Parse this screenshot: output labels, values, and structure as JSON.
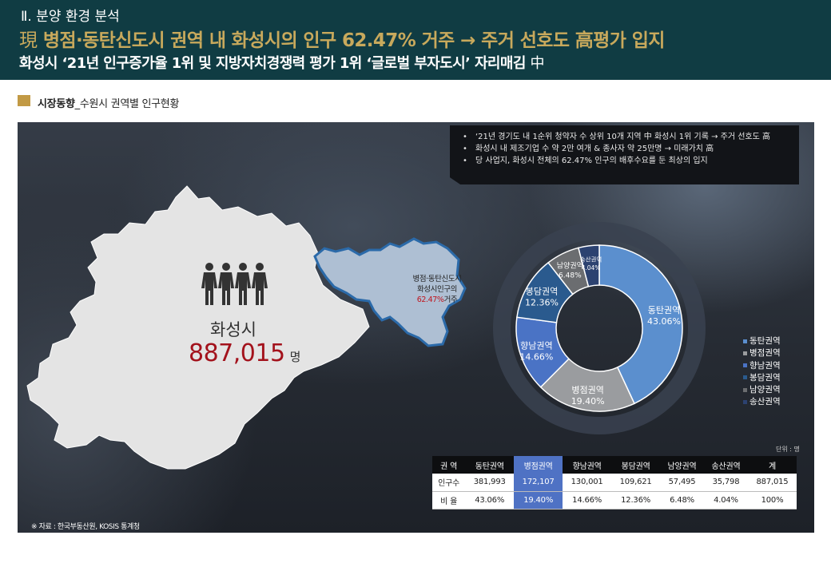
{
  "header": {
    "section": "Ⅱ. 분양 환경 분석",
    "title_prefix": "現",
    "title": "병점·동탄신도시 권역 내 화성시의 인구 62.47% 거주 → 주거 선호도 高평가 입지",
    "subtitle": "화성시 ‘21년 인구증가율 1위 및 지방자치경쟁력 평가 1위 ‘글로벌 부자도시’ 자리매김",
    "subtitle_tail": "中"
  },
  "section": {
    "label": "시장동향",
    "sublabel": "_수원시 권역별 인구현황"
  },
  "notes": [
    "‘21년 경기도 내 1순위 청약자 수 상위 10개 지역 中 화성시 1위 기록 → 주거 선호도 高",
    "화성시 내 제조기업 수 약 2만 여개 & 종사자 약 25만명 → 미래가치 高",
    "당 사업지, 화성시 전체의 62.47% 인구의 배후수요를 둔 최상의 입지"
  ],
  "map": {
    "city_name": "화성시",
    "population": "887,015",
    "population_unit": "명",
    "people_icon": "people-group-icon",
    "callout_line1": "병점·동탄신도시",
    "callout_line2": "화성시인구의",
    "callout_pct": "62.47%",
    "callout_suffix": "거주"
  },
  "chart_data": {
    "type": "pie",
    "donut": true,
    "categories": [
      "동탄권역",
      "병점권역",
      "향남권역",
      "봉담권역",
      "남양권역",
      "송산권역"
    ],
    "values": [
      43.06,
      19.4,
      14.66,
      12.36,
      6.48,
      4.04
    ],
    "value_labels": [
      "43.06%",
      "19.40%",
      "14.66%",
      "12.36%",
      "6.48%",
      "4.04%"
    ],
    "colors": [
      "#5b8fce",
      "#9a9c9f",
      "#4a73c5",
      "#2a5a8e",
      "#6b6d70",
      "#2c4270"
    ],
    "legend": "right"
  },
  "table": {
    "unit": "단위 : 명",
    "headers": [
      "권  역",
      "동탄권역",
      "병점권역",
      "향남권역",
      "봉담권역",
      "남양권역",
      "송산권역",
      "계"
    ],
    "rows": [
      [
        "인구수",
        "381,993",
        "172,107",
        "130,001",
        "109,621",
        "57,495",
        "35,798",
        "887,015"
      ],
      [
        "비  율",
        "43.06%",
        "19.40%",
        "14.66%",
        "12.36%",
        "6.48%",
        "4.04%",
        "100%"
      ]
    ],
    "highlight_col": 2
  },
  "source": "※ 자료 : 한국부동산원, KOSIS 통계청"
}
